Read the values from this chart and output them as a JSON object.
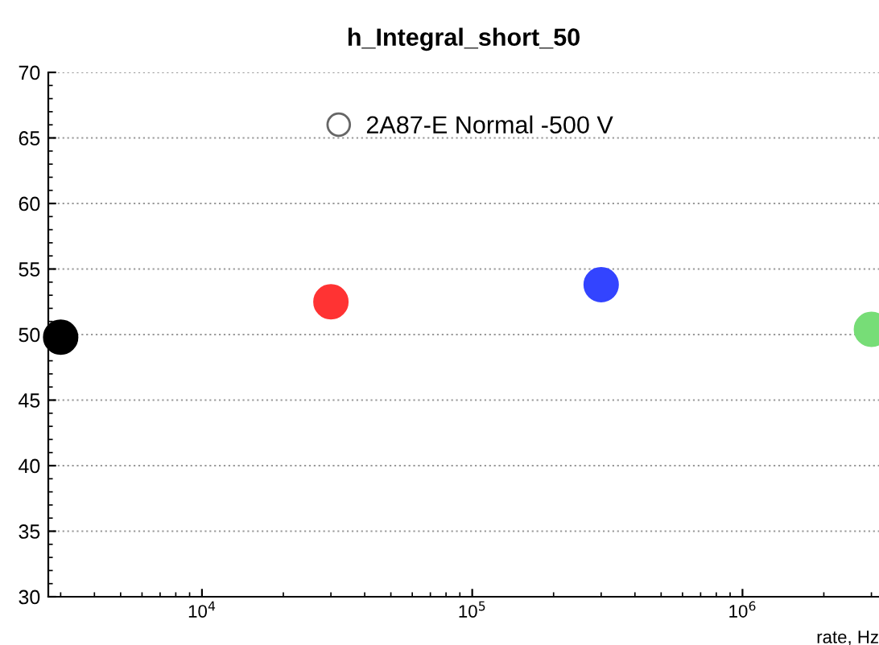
{
  "chart_data": {
    "type": "scatter",
    "title": "h_Integral_short_50",
    "xlabel": "rate, Hz",
    "log": "x",
    "marker": "circle",
    "grid": "y",
    "legend": "top",
    "xlim": [
      2700,
      3200000
    ],
    "xticks": [
      {
        "value": 10000,
        "label": "10$^{4}$"
      },
      {
        "value": 100000,
        "label": "10$^{5}$"
      },
      {
        "value": 1000000,
        "label": "10$^{6}$"
      }
    ],
    "ylim": [
      30,
      70
    ],
    "yticks": [
      30,
      35,
      40,
      45,
      50,
      55,
      60,
      65,
      70
    ],
    "series": [
      {
        "x": [
          3000,
          30000,
          300000,
          3000000
        ],
        "values": [
          49.8,
          52.5,
          53.8,
          50.4
        ],
        "colors": [
          "#000000",
          "#ff3333",
          "#3344ff",
          "#77dd77"
        ]
      },
      {
        "name": "2A87-E Normal -500 V",
        "color": "#666666"
      }
    ]
  }
}
